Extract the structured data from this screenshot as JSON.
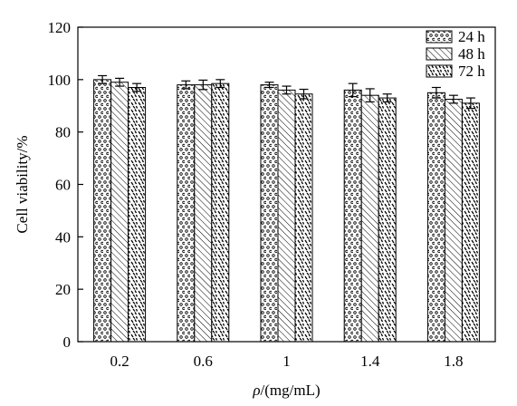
{
  "chart_data": {
    "type": "bar",
    "title": "",
    "xlabel_italic": "ρ",
    "xlabel_rest": "/(mg/mL)",
    "ylabel": "Cell viability/%",
    "categories": [
      "0.2",
      "0.6",
      "1",
      "1.4",
      "1.8"
    ],
    "ylim": [
      0,
      120
    ],
    "yticks": [
      "0",
      "20",
      "40",
      "60",
      "80",
      "100",
      "120"
    ],
    "grid": false,
    "legend_position": "top-right",
    "series": [
      {
        "name": "24 h",
        "pattern": "dots",
        "values": [
          100,
          98,
          98,
          96,
          95
        ],
        "errors": [
          1.5,
          1.5,
          1.0,
          2.5,
          2.0
        ]
      },
      {
        "name": "48 h",
        "pattern": "hatch",
        "values": [
          99,
          98,
          96,
          94,
          92.5
        ],
        "errors": [
          1.5,
          1.8,
          1.5,
          2.5,
          1.5
        ]
      },
      {
        "name": "72 h",
        "pattern": "dashes",
        "values": [
          97,
          98.5,
          94.5,
          93,
          91
        ],
        "errors": [
          1.5,
          1.5,
          1.8,
          1.5,
          2.0
        ]
      }
    ]
  }
}
